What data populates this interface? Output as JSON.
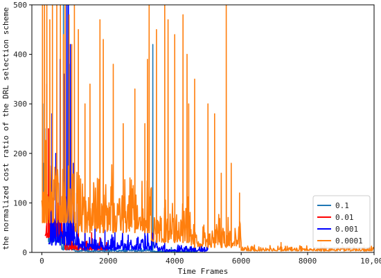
{
  "chart_data": {
    "type": "line",
    "title": "",
    "xlabel": "Time Frames",
    "ylabel": "the normalized cost ratio of the DRL selection scheme",
    "xlim": [
      -300,
      10000
    ],
    "ylim": [
      0,
      500
    ],
    "x_ticks": [
      0,
      2000,
      4000,
      6000,
      8000,
      10000
    ],
    "x_tick_labels": [
      "0",
      "2000",
      "4000",
      "6000",
      "8000",
      "10,000"
    ],
    "y_ticks": [
      0,
      100,
      200,
      300,
      400,
      500
    ],
    "y_tick_labels": [
      "0",
      "100",
      "200",
      "300",
      "400",
      "500"
    ],
    "grid": false,
    "legend_position": "bottom-right",
    "series": [
      {
        "name": "0.1",
        "color": "#1f77b4",
        "segments": [
          {
            "x_start": 0,
            "x_end": 200,
            "baseline": 100,
            "noise": 25,
            "seed": 11,
            "spikes": [
              [
                30,
                300
              ],
              [
                60,
                180
              ],
              [
                90,
                250
              ],
              [
                130,
                140
              ],
              [
                170,
                90
              ]
            ]
          },
          {
            "x_start": 200,
            "x_end": 600,
            "baseline": 20,
            "noise": 15,
            "seed": 12,
            "spikes": [
              [
                250,
                90
              ],
              [
                330,
                60
              ],
              [
                420,
                40
              ],
              [
                520,
                30
              ]
            ]
          },
          {
            "x_start": 600,
            "x_end": 1000,
            "baseline": 5,
            "noise": 8,
            "seed": 13,
            "spikes": [
              [
                650,
                500
              ],
              [
                760,
                500
              ],
              [
                830,
                380
              ],
              [
                900,
                120
              ],
              [
                960,
                60
              ]
            ]
          },
          {
            "x_start": 1000,
            "x_end": 3300,
            "baseline": 2,
            "noise": 3,
            "seed": 14,
            "spikes": [
              [
                1400,
                15
              ],
              [
                1900,
                12
              ],
              [
                2500,
                10
              ],
              [
                3000,
                8
              ]
            ]
          },
          {
            "x_start": 3300,
            "x_end": 3400,
            "baseline": 2,
            "noise": 2,
            "seed": 15,
            "spikes": [
              [
                3340,
                420
              ]
            ]
          },
          {
            "x_start": 3400,
            "x_end": 4700,
            "baseline": 1,
            "noise": 2,
            "seed": 16,
            "spikes": [
              [
                3900,
                10
              ],
              [
                4400,
                8
              ]
            ]
          }
        ]
      },
      {
        "name": "0.01",
        "color": "#ff0000",
        "segments": [
          {
            "x_start": 100,
            "x_end": 700,
            "baseline": 30,
            "noise": 35,
            "seed": 21,
            "spikes": [
              [
                150,
                340
              ],
              [
                200,
                250
              ],
              [
                260,
                130
              ],
              [
                330,
                110
              ],
              [
                420,
                95
              ],
              [
                500,
                100
              ],
              [
                580,
                70
              ],
              [
                650,
                60
              ]
            ]
          },
          {
            "x_start": 700,
            "x_end": 2000,
            "baseline": 5,
            "noise": 10,
            "seed": 22,
            "spikes": [
              [
                900,
                75
              ],
              [
                1100,
                60
              ],
              [
                1300,
                55
              ],
              [
                1500,
                40
              ],
              [
                1750,
                30
              ],
              [
                1950,
                20
              ]
            ]
          }
        ]
      },
      {
        "name": "0.001",
        "color": "#0000ff",
        "segments": [
          {
            "x_start": 200,
            "x_end": 1100,
            "baseline": 15,
            "noise": 40,
            "seed": 31,
            "spikes": [
              [
                300,
                280
              ],
              [
                420,
                200
              ],
              [
                550,
                390
              ],
              [
                680,
                360
              ],
              [
                750,
                500
              ],
              [
                800,
                500
              ],
              [
                860,
                420
              ],
              [
                950,
                180
              ],
              [
                1050,
                120
              ]
            ]
          },
          {
            "x_start": 1100,
            "x_end": 3500,
            "baseline": 5,
            "noise": 18,
            "seed": 32,
            "spikes": [
              [
                1300,
                60
              ],
              [
                1600,
                50
              ],
              [
                1900,
                45
              ],
              [
                2200,
                40
              ],
              [
                2600,
                35
              ],
              [
                2900,
                30
              ],
              [
                3100,
                40
              ],
              [
                3300,
                25
              ]
            ]
          },
          {
            "x_start": 3500,
            "x_end": 5000,
            "baseline": 2,
            "noise": 8,
            "seed": 33,
            "spikes": [
              [
                3700,
                20
              ],
              [
                4100,
                15
              ],
              [
                4500,
                12
              ],
              [
                4900,
                10
              ]
            ]
          }
        ]
      },
      {
        "name": "0.0001",
        "color": "#ff7f0e",
        "segments": [
          {
            "x_start": 0,
            "x_end": 1000,
            "baseline": 60,
            "noise": 90,
            "seed": 41,
            "spikes": [
              [
                20,
                500
              ],
              [
                80,
                500
              ],
              [
                150,
                500
              ],
              [
                240,
                470
              ],
              [
                320,
                500
              ],
              [
                450,
                500
              ],
              [
                560,
                500
              ],
              [
                650,
                440
              ],
              [
                700,
                500
              ],
              [
                820,
                480
              ],
              [
                900,
                420
              ],
              [
                980,
                500
              ]
            ]
          },
          {
            "x_start": 1000,
            "x_end": 3300,
            "baseline": 40,
            "noise": 70,
            "seed": 42,
            "spikes": [
              [
                1100,
                450
              ],
              [
                1300,
                300
              ],
              [
                1450,
                340
              ],
              [
                1750,
                470
              ],
              [
                1850,
                430
              ],
              [
                2150,
                380
              ],
              [
                2450,
                260
              ],
              [
                2800,
                330
              ],
              [
                3100,
                260
              ],
              [
                3180,
                390
              ],
              [
                3230,
                500
              ]
            ]
          },
          {
            "x_start": 3300,
            "x_end": 4500,
            "baseline": 20,
            "noise": 50,
            "seed": 43,
            "spikes": [
              [
                3450,
                450
              ],
              [
                3700,
                500
              ],
              [
                3800,
                470
              ],
              [
                4000,
                440
              ],
              [
                4250,
                480
              ],
              [
                4370,
                400
              ],
              [
                4420,
                300
              ]
            ]
          },
          {
            "x_start": 4500,
            "x_end": 6000,
            "baseline": 10,
            "noise": 35,
            "seed": 44,
            "spikes": [
              [
                4600,
                350
              ],
              [
                5000,
                300
              ],
              [
                5200,
                280
              ],
              [
                5400,
                160
              ],
              [
                5550,
                500
              ],
              [
                5700,
                180
              ],
              [
                5950,
                120
              ]
            ]
          },
          {
            "x_start": 6000,
            "x_end": 10000,
            "baseline": 3,
            "noise": 6,
            "seed": 45,
            "spikes": [
              [
                6400,
                15
              ],
              [
                7200,
                20
              ],
              [
                7800,
                12
              ],
              [
                8400,
                25
              ],
              [
                8500,
                15
              ],
              [
                9100,
                10
              ],
              [
                9700,
                14
              ]
            ]
          }
        ]
      }
    ]
  }
}
